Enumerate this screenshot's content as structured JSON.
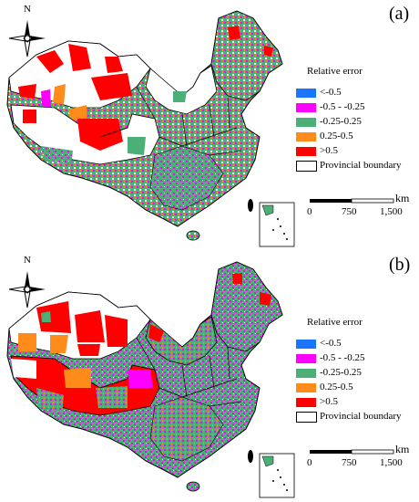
{
  "panels": [
    {
      "label": "(a)",
      "north": "N",
      "legend": {
        "title": "Relative error",
        "items": [
          {
            "label": "<-0.5",
            "color": "#1a75ff"
          },
          {
            "label": "-0.5 - -0.25",
            "color": "#ff00ff"
          },
          {
            "label": "-0.25-0.25",
            "color": "#4caf78"
          },
          {
            "label": "0.25-0.5",
            "color": "#ff8c1a"
          },
          {
            "label": ">0.5",
            "color": "#ff0000"
          },
          {
            "label": "Provincial boundary",
            "color": "#ffffff"
          }
        ]
      },
      "scale": {
        "unit": "km",
        "ticks": [
          "0",
          "750",
          "1,500"
        ]
      }
    },
    {
      "label": "(b)",
      "north": "N",
      "legend": {
        "title": "Relative error",
        "items": [
          {
            "label": "<-0.5",
            "color": "#1a75ff"
          },
          {
            "label": "-0.5 - -0.25",
            "color": "#ff00ff"
          },
          {
            "label": "-0.25-0.25",
            "color": "#4caf78"
          },
          {
            "label": "0.25-0.5",
            "color": "#ff8c1a"
          },
          {
            "label": ">0.5",
            "color": "#ff0000"
          },
          {
            "label": "Provincial boundary",
            "color": "#ffffff"
          }
        ]
      },
      "scale": {
        "unit": "km",
        "ticks": [
          "0",
          "750",
          "1,500"
        ]
      }
    }
  ]
}
